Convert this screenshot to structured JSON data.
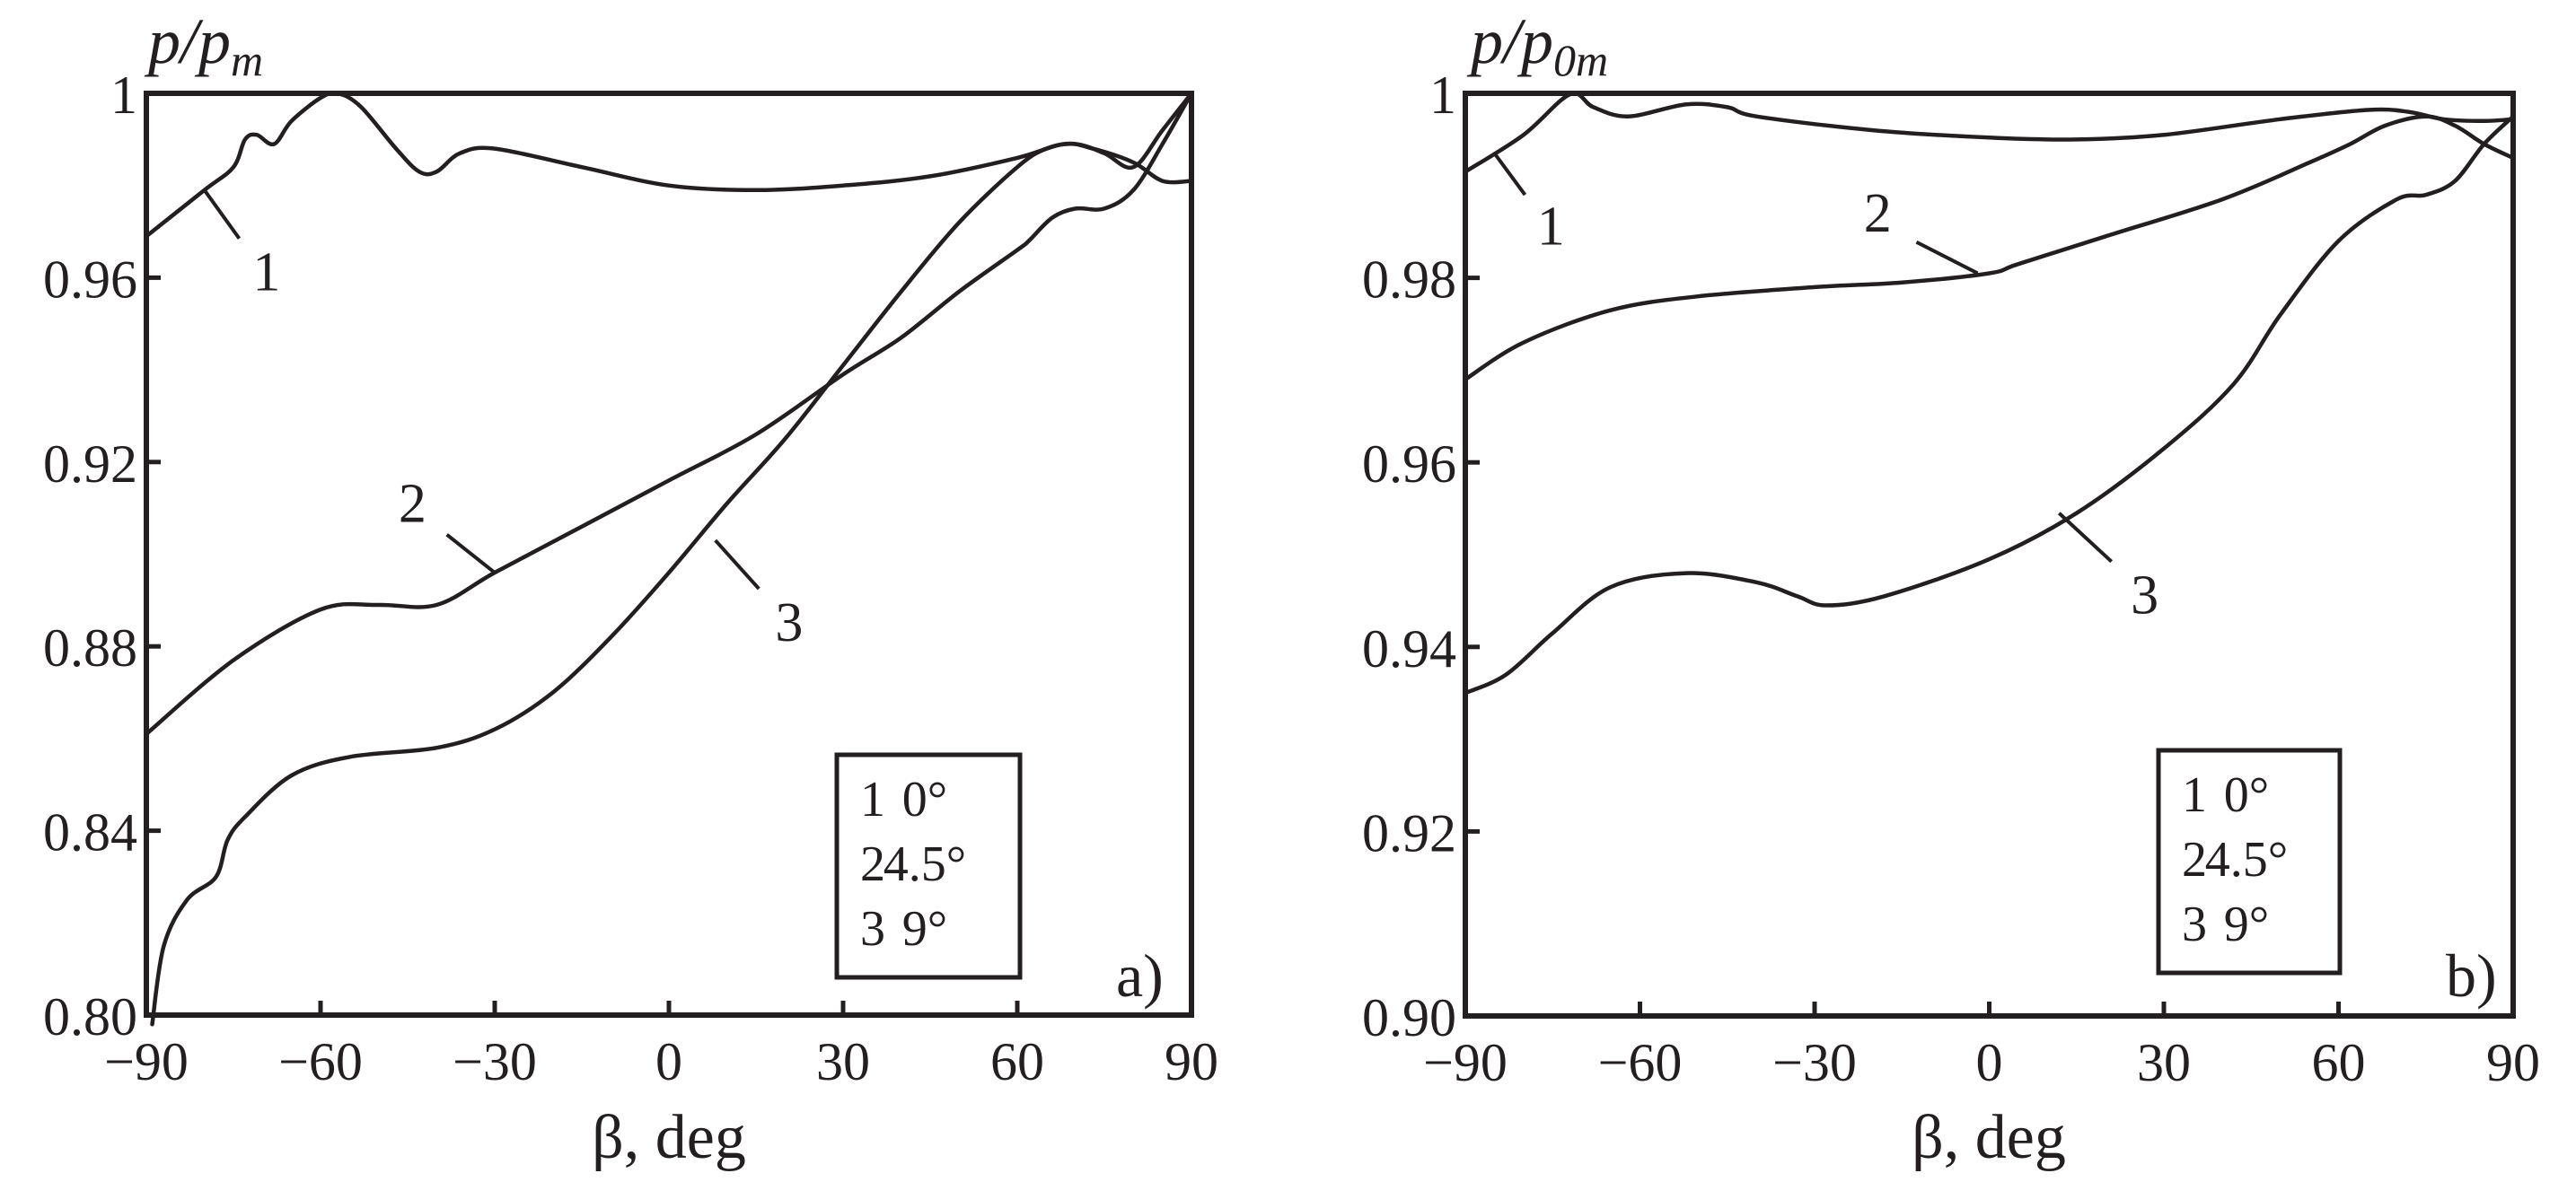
{
  "chart_data": [
    {
      "type": "line",
      "panel": "a)",
      "title": "",
      "xlabel": "β, deg",
      "ylabel": "p/p_m",
      "ylabel_main": "p/p",
      "ylabel_sub": "m",
      "xlim": [
        -90,
        90
      ],
      "ylim": [
        0.8,
        1.0
      ],
      "xticks": [
        -90,
        -60,
        -30,
        0,
        30,
        60,
        90
      ],
      "xtick_labels": [
        "−90",
        "−60",
        "−30",
        "0",
        "30",
        "60",
        "90"
      ],
      "yticks": [
        0.8,
        0.84,
        0.88,
        0.92,
        0.96,
        1.0
      ],
      "ytick_labels": [
        "0.80",
        "0.84",
        "0.88",
        "0.92",
        "0.96",
        "1"
      ],
      "grid": false,
      "legend_position": "lower right (inset box)",
      "legend": [
        {
          "id": "1",
          "label": "0°"
        },
        {
          "id": "2",
          "label": "4.5°"
        },
        {
          "id": "3",
          "label": "9°"
        }
      ],
      "series": [
        {
          "name": "1 (0°)",
          "x": [
            -90,
            -80,
            -75,
            -73,
            -71,
            -68,
            -65,
            -60,
            -57,
            -53,
            -47,
            -43,
            -40,
            -36,
            -30,
            -15,
            0,
            15,
            30,
            45,
            60,
            68,
            73,
            80,
            85,
            90
          ],
          "values": [
            0.969,
            0.979,
            0.984,
            0.99,
            0.991,
            0.989,
            0.994,
            0.999,
            1.0,
            0.997,
            0.988,
            0.983,
            0.983,
            0.987,
            0.988,
            0.984,
            0.98,
            0.979,
            0.98,
            0.982,
            0.986,
            0.989,
            0.988,
            0.985,
            0.981,
            0.981
          ]
        },
        {
          "name": "2 (4.5°)",
          "x": [
            -90,
            -75,
            -60,
            -50,
            -40,
            -30,
            -15,
            0,
            15,
            30,
            40,
            50,
            60,
            62,
            66,
            70,
            75,
            80,
            85,
            90
          ],
          "values": [
            0.861,
            0.877,
            0.888,
            0.889,
            0.889,
            0.896,
            0.906,
            0.916,
            0.926,
            0.939,
            0.947,
            0.957,
            0.966,
            0.968,
            0.973,
            0.975,
            0.975,
            0.979,
            0.989,
            1.0
          ]
        },
        {
          "name": "3 (9°)",
          "x": [
            -89,
            -87,
            -83,
            -78,
            -76,
            -73,
            -65,
            -55,
            -40,
            -30,
            -20,
            -10,
            0,
            10,
            20,
            30,
            40,
            50,
            60,
            65,
            70,
            75,
            80,
            85,
            90
          ],
          "values": [
            0.798,
            0.815,
            0.825,
            0.83,
            0.838,
            0.843,
            0.852,
            0.856,
            0.858,
            0.862,
            0.87,
            0.882,
            0.896,
            0.911,
            0.925,
            0.941,
            0.957,
            0.972,
            0.984,
            0.988,
            0.989,
            0.987,
            0.984,
            0.992,
            1.0
          ]
        }
      ],
      "callouts": [
        {
          "text": "1",
          "at": [
            -80,
            0.979
          ],
          "label_at": [
            -72,
            0.965
          ]
        },
        {
          "text": "2",
          "at": [
            -30,
            0.896
          ],
          "label_at": [
            -41,
            0.907
          ]
        },
        {
          "text": "3",
          "at": [
            8,
            0.903
          ],
          "label_at": [
            18,
            0.889
          ]
        }
      ]
    },
    {
      "type": "line",
      "panel": "b)",
      "title": "",
      "xlabel": "β, deg",
      "ylabel": "p/p_0m",
      "ylabel_main": "p/p",
      "ylabel_sub": "0m",
      "xlim": [
        -90,
        90
      ],
      "ylim": [
        0.9,
        1.0
      ],
      "xticks": [
        -90,
        -60,
        -30,
        0,
        30,
        60,
        90
      ],
      "xtick_labels": [
        "−90",
        "−60",
        "−30",
        "0",
        "30",
        "60",
        "90"
      ],
      "yticks": [
        0.9,
        0.92,
        0.94,
        0.96,
        0.98,
        1.0
      ],
      "ytick_labels": [
        "0.90",
        "0.92",
        "0.94",
        "0.96",
        "0.98",
        "1"
      ],
      "grid": false,
      "legend_position": "lower right (inset box)",
      "legend": [
        {
          "id": "1",
          "label": "0°"
        },
        {
          "id": "2",
          "label": "4.5°"
        },
        {
          "id": "3",
          "label": "9°"
        }
      ],
      "series": [
        {
          "name": "1 (0°)",
          "x": [
            -90,
            -80,
            -72,
            -68,
            -62,
            -52,
            -45,
            -40,
            -20,
            0,
            15,
            30,
            50,
            65,
            72,
            78,
            85,
            90
          ],
          "values": [
            0.9915,
            0.9955,
            0.9999,
            0.9985,
            0.9975,
            0.9988,
            0.9985,
            0.9975,
            0.996,
            0.9952,
            0.995,
            0.9955,
            0.9972,
            0.9982,
            0.998,
            0.9972,
            0.997,
            0.9972
          ]
        },
        {
          "name": "2 (4.5°)",
          "x": [
            -90,
            -80,
            -65,
            -50,
            -30,
            -15,
            0,
            5,
            20,
            40,
            55,
            62,
            68,
            75,
            80,
            85,
            90
          ],
          "values": [
            0.969,
            0.973,
            0.9765,
            0.978,
            0.979,
            0.9795,
            0.9805,
            0.9815,
            0.9845,
            0.9885,
            0.9925,
            0.9945,
            0.9965,
            0.9975,
            0.9965,
            0.9945,
            0.993
          ]
        },
        {
          "name": "3 (9°)",
          "x": [
            -90,
            -83,
            -75,
            -65,
            -52,
            -40,
            -33,
            -28,
            -18,
            0,
            15,
            30,
            42,
            50,
            60,
            70,
            75,
            80,
            85,
            90
          ],
          "values": [
            0.935,
            0.937,
            0.9415,
            0.9465,
            0.948,
            0.947,
            0.9455,
            0.9445,
            0.9455,
            0.9495,
            0.9545,
            0.9615,
            0.9685,
            0.976,
            0.984,
            0.9885,
            0.989,
            0.9905,
            0.9945,
            0.9975
          ]
        }
      ],
      "callouts": [
        {
          "text": "1",
          "at": [
            -85,
            0.9935
          ],
          "label_at": [
            -78,
            0.9875
          ]
        },
        {
          "text": "2",
          "at": [
            -2,
            0.9805
          ],
          "label_at": [
            -16,
            0.985
          ]
        },
        {
          "text": "3",
          "at": [
            12,
            0.9545
          ],
          "label_at": [
            24,
            0.9475
          ]
        }
      ]
    }
  ]
}
